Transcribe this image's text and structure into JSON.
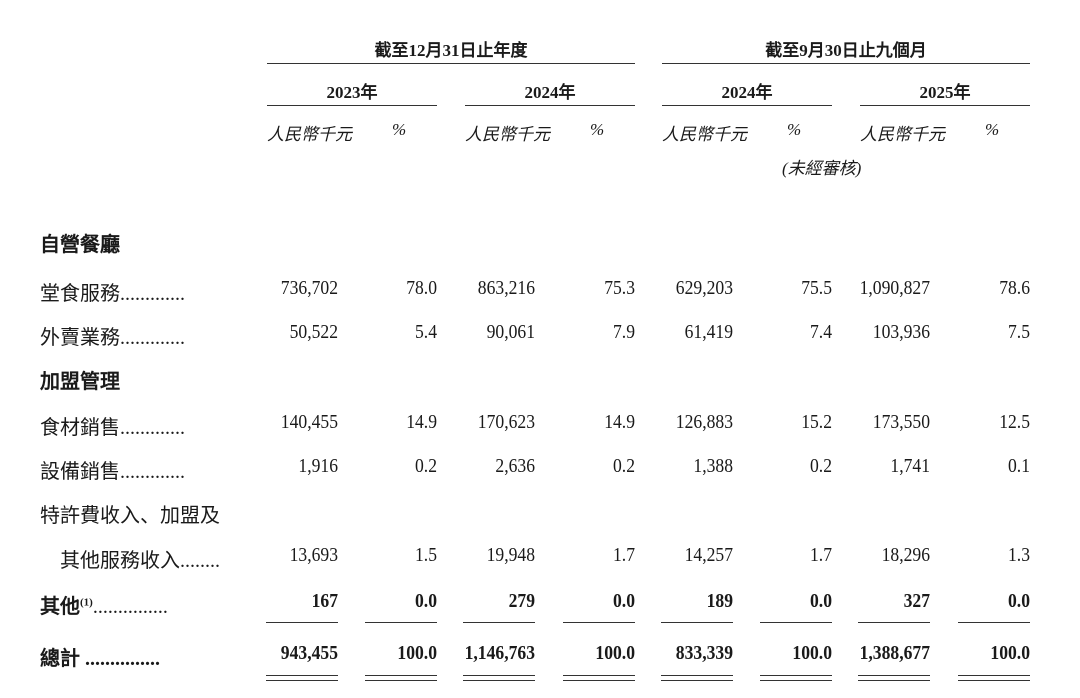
{
  "header": {
    "groups": [
      "截至12月31日止年度",
      "截至9月30日止九個月"
    ],
    "years": [
      "2023年",
      "2024年",
      "2024年",
      "2025年"
    ],
    "unit_amount": "人民幣千元",
    "unit_pct": "%",
    "unaudited": "(未經審核)"
  },
  "rows": [
    {
      "label": "自營餐廳",
      "bold": true,
      "values": []
    },
    {
      "label": "堂食服務.............",
      "values": [
        "736,702",
        "78.0",
        "863,216",
        "75.3",
        "629,203",
        "75.5",
        "1,090,827",
        "78.6"
      ]
    },
    {
      "label": "外賣業務.............",
      "values": [
        "50,522",
        "5.4",
        "90,061",
        "7.9",
        "61,419",
        "7.4",
        "103,936",
        "7.5"
      ]
    },
    {
      "label": "加盟管理",
      "bold": true,
      "values": []
    },
    {
      "label": "食材銷售.............",
      "values": [
        "140,455",
        "14.9",
        "170,623",
        "14.9",
        "126,883",
        "15.2",
        "173,550",
        "12.5"
      ]
    },
    {
      "label": "設備銷售.............",
      "values": [
        "1,916",
        "0.2",
        "2,636",
        "0.2",
        "1,388",
        "0.2",
        "1,741",
        "0.1"
      ]
    },
    {
      "label": "特許費收入、加盟及",
      "values": []
    },
    {
      "label": "　其他服務收入........",
      "values": [
        "13,693",
        "1.5",
        "19,948",
        "1.7",
        "14,257",
        "1.7",
        "18,296",
        "1.3"
      ]
    },
    {
      "label": "其他",
      "note": "(1)",
      "label_dots": "...............",
      "bold": true,
      "values": [
        "167",
        "0.0",
        "279",
        "0.0",
        "189",
        "0.0",
        "327",
        "0.0"
      ]
    },
    {
      "label": "總計 ...............",
      "bold": true,
      "values": [
        "943,455",
        "100.0",
        "1,146,763",
        "100.0",
        "833,339",
        "100.0",
        "1,388,677",
        "100.0"
      ]
    }
  ]
}
